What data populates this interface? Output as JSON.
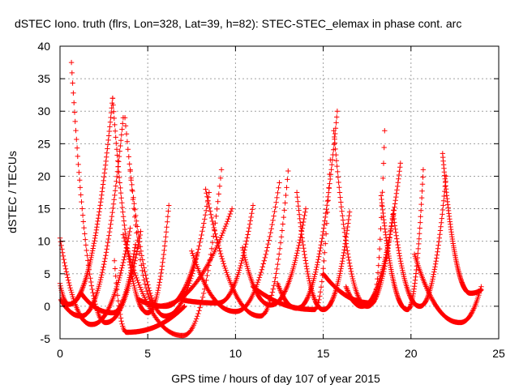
{
  "chart_data": {
    "type": "scatter",
    "title": "dSTEC Iono. truth (flrs, Lon=328, Lat=39, h=82): STEC-STEC_elemax in phase cont. arc",
    "xlabel": "GPS time / hours of day 107 of year 2015",
    "ylabel": "dSTEC  / TECUs",
    "xlim": [
      0,
      25
    ],
    "ylim": [
      -5,
      40
    ],
    "xticks": [
      0,
      5,
      10,
      15,
      20,
      25
    ],
    "yticks": [
      -5,
      0,
      5,
      10,
      15,
      20,
      25,
      30,
      35,
      40
    ],
    "grid": true,
    "marker": "+",
    "color": "#ff0000",
    "arcs": [
      {
        "start": 0.0,
        "min": 1.8,
        "end": 4.0,
        "y0": 10.5,
        "ymin": -2.8,
        "y1": 12
      },
      {
        "start": 0.0,
        "min": 0.5,
        "end": 3.0,
        "y0": 3.5,
        "ymin": 0.3,
        "y1": 32
      },
      {
        "start": 0.05,
        "min": 1.2,
        "end": 3.6,
        "y0": 1.0,
        "ymin": -1.5,
        "y1": 29
      },
      {
        "start": 0.65,
        "min": 2.6,
        "end": 4.6,
        "y0": 37.5,
        "ymin": -2.5,
        "y1": 11.5
      },
      {
        "start": 1.2,
        "min": 3.0,
        "end": 4.3,
        "y0": 2.0,
        "ymin": -1.0,
        "y1": 9.5
      },
      {
        "start": 3.0,
        "min": 5.0,
        "end": 6.2,
        "y0": 32.0,
        "ymin": -1.0,
        "y1": 15.5
      },
      {
        "start": 3.7,
        "min": 6.0,
        "end": 8.5,
        "y0": 29.0,
        "ymin": -1.5,
        "y1": 17.5
      },
      {
        "start": 3.1,
        "min": 3.8,
        "end": 7.1,
        "y0": 7.0,
        "ymin": -4.0,
        "y1": 0.0
      },
      {
        "start": 4.0,
        "min": 5.5,
        "end": 9.8,
        "y0": 21.0,
        "ymin": 0.0,
        "y1": 15.0
      },
      {
        "start": 3.6,
        "min": 7.0,
        "end": 9.2,
        "y0": 11.0,
        "ymin": -4.5,
        "y1": 21.0
      },
      {
        "start": 4.5,
        "min": 6.0,
        "end": 7.8,
        "y0": 1.0,
        "ymin": 0.0,
        "y1": 8.0
      },
      {
        "start": 6.9,
        "min": 9.0,
        "end": 11.0,
        "y0": 1.0,
        "ymin": 0.5,
        "y1": 15.5
      },
      {
        "start": 7.5,
        "min": 10.0,
        "end": 12.5,
        "y0": 8.5,
        "ymin": -0.8,
        "y1": 19.0
      },
      {
        "start": 8.3,
        "min": 11.4,
        "end": 13.0,
        "y0": 18.0,
        "ymin": -1.5,
        "y1": 20.8
      },
      {
        "start": 10.4,
        "min": 12.0,
        "end": 14.0,
        "y0": 9.0,
        "ymin": 0.2,
        "y1": 15.0
      },
      {
        "start": 11.0,
        "min": 14.5,
        "end": 15.4,
        "y0": 3.0,
        "ymin": -0.5,
        "y1": 22.5
      },
      {
        "start": 12.4,
        "min": 13.5,
        "end": 15.8,
        "y0": 3.5,
        "ymin": -0.3,
        "y1": 30.0
      },
      {
        "start": 13.5,
        "min": 15.0,
        "end": 16.5,
        "y0": 17.5,
        "ymin": -0.5,
        "y1": 14.5
      },
      {
        "start": 15.6,
        "min": 17.5,
        "end": 19.0,
        "y0": 27.0,
        "ymin": 0.0,
        "y1": 14.8
      },
      {
        "start": 15.0,
        "min": 17.8,
        "end": 18.5,
        "y0": 5.0,
        "ymin": 0.5,
        "y1": 27.0
      },
      {
        "start": 16.3,
        "min": 17.2,
        "end": 19.4,
        "y0": 3.0,
        "ymin": 0.0,
        "y1": 22.0
      },
      {
        "start": 18.3,
        "min": 19.8,
        "end": 20.7,
        "y0": 17.0,
        "ymin": -0.5,
        "y1": 21.0
      },
      {
        "start": 19.0,
        "min": 20.5,
        "end": 22.0,
        "y0": 14.0,
        "ymin": 0.0,
        "y1": 20.0
      },
      {
        "start": 20.2,
        "min": 22.8,
        "end": 24.0,
        "y0": 8.0,
        "ymin": -2.5,
        "y1": 3.0
      },
      {
        "start": 21.8,
        "min": 23.4,
        "end": 24.0,
        "y0": 23.5,
        "ymin": 2.0,
        "y1": 2.5
      }
    ]
  }
}
